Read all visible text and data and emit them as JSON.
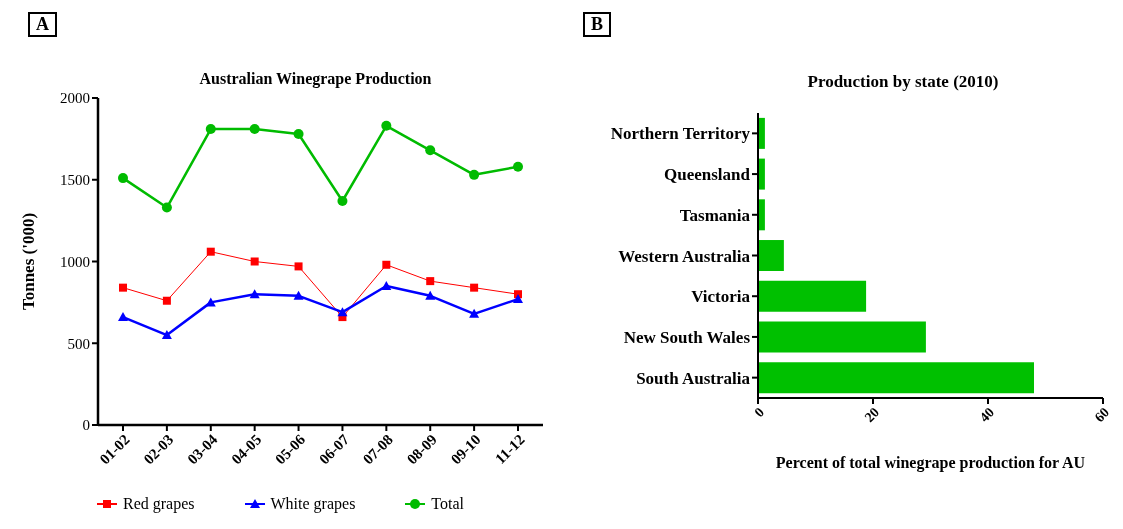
{
  "chart_data": [
    {
      "type": "line",
      "title": "Australian Winegrape Production",
      "ylabel": "Tonnes ('000)",
      "annotations": [
        "A"
      ],
      "categories": [
        "01-02",
        "02-03",
        "03-04",
        "04-05",
        "05-06",
        "06-07",
        "07-08",
        "08-09",
        "09-10",
        "11-12"
      ],
      "series": [
        {
          "name": "Red grapes",
          "color": "#ff0000",
          "marker": "square",
          "values": [
            840,
            760,
            1060,
            1000,
            970,
            660,
            980,
            880,
            840,
            800
          ]
        },
        {
          "name": "White grapes",
          "color": "#0000ff",
          "marker": "triangle",
          "values": [
            660,
            550,
            750,
            800,
            790,
            690,
            850,
            790,
            680,
            770
          ]
        },
        {
          "name": "Total",
          "color": "#00bb00",
          "marker": "circle",
          "values": [
            1510,
            1330,
            1810,
            1810,
            1780,
            1370,
            1830,
            1680,
            1530,
            1580
          ]
        }
      ],
      "ylim": [
        0,
        2000
      ],
      "yticks": [
        0,
        500,
        1000,
        1500,
        2000
      ],
      "legend": "bottom",
      "grid": false
    },
    {
      "type": "bar",
      "orientation": "horizontal",
      "title": "Production by state (2010)",
      "xlabel": "Percent of total winegrape production for AU",
      "annotations": [
        "B"
      ],
      "categories": [
        "Northern Territory",
        "Queensland",
        "Tasmania",
        "Western Australia",
        "Victoria",
        "New South Wales",
        "South Australia"
      ],
      "values": [
        1.2,
        1.2,
        1.2,
        4.5,
        18.8,
        29.2,
        48
      ],
      "color": "#00c000",
      "xlim": [
        0,
        60
      ],
      "xticks": [
        0,
        20,
        40,
        60
      ],
      "grid": false
    }
  ]
}
